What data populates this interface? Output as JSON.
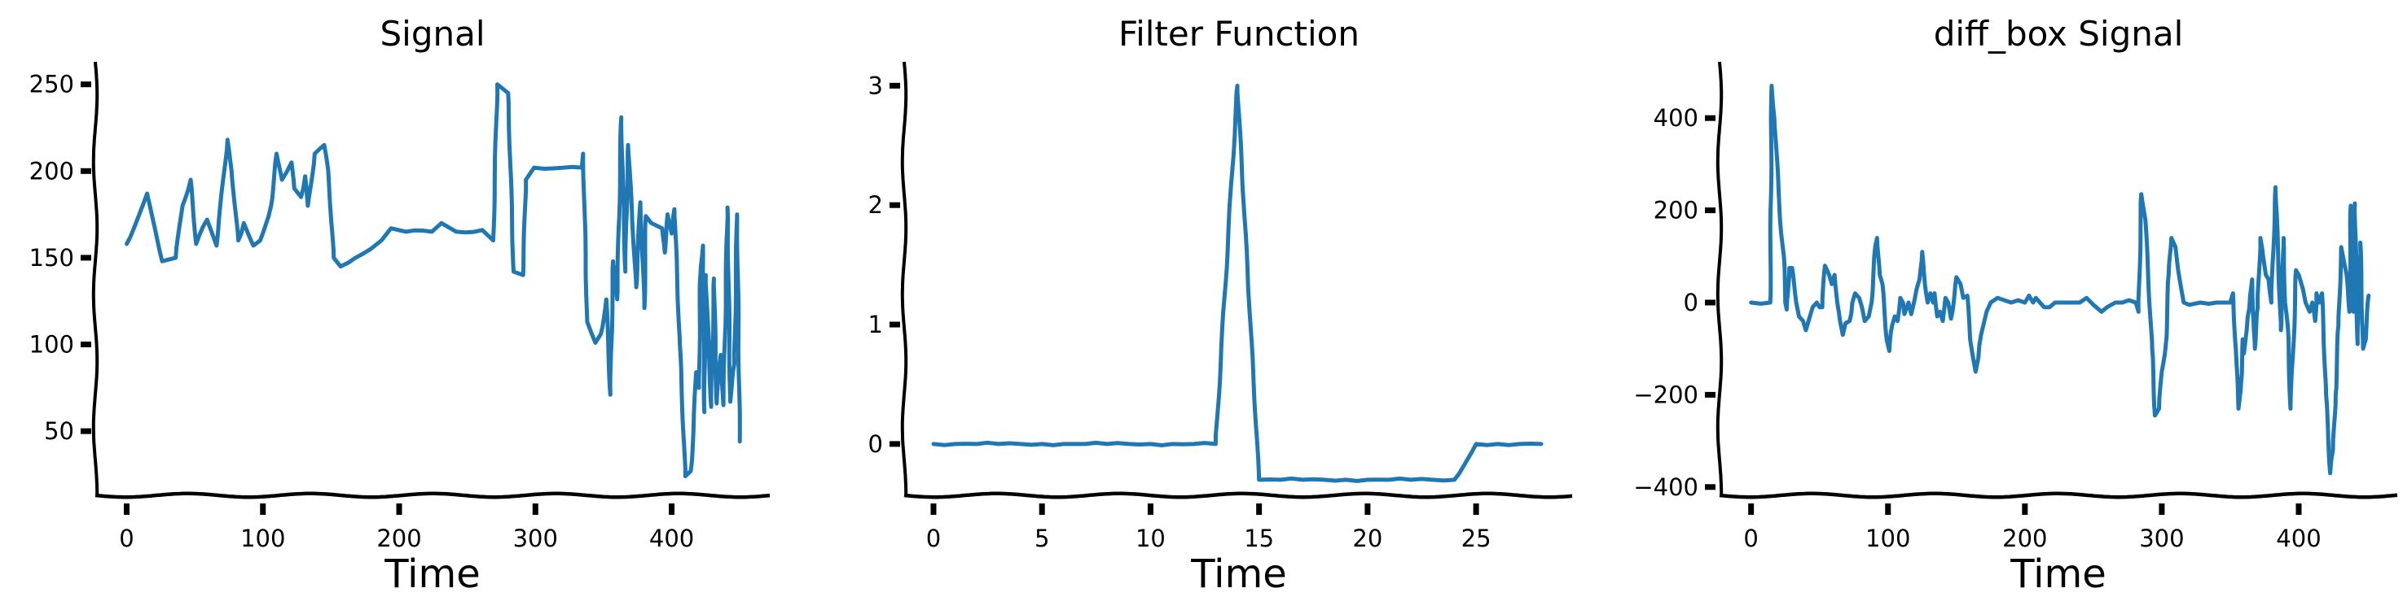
{
  "line_color": "#1f77b4",
  "chart_data": [
    {
      "type": "line",
      "title": "Signal",
      "xlabel": "Time",
      "ylabel": "",
      "xlim": [
        -23,
        472
      ],
      "ylim": [
        13,
        263
      ],
      "xticks": [
        0,
        100,
        200,
        300,
        400
      ],
      "xtick_labels": [
        "0",
        "100",
        "200",
        "300",
        "400"
      ],
      "yticks": [
        50,
        100,
        150,
        200,
        250
      ],
      "ytick_labels": [
        "50",
        "100",
        "150",
        "200",
        "250"
      ],
      "grid": false,
      "x": [
        0,
        15,
        26,
        36,
        41,
        47,
        51,
        59,
        66,
        74,
        77,
        82,
        86,
        93,
        98,
        106,
        110,
        114,
        121,
        123,
        128,
        131,
        133,
        138,
        142,
        145,
        148,
        152,
        157,
        168,
        179,
        187,
        194,
        205,
        224,
        231,
        242,
        261,
        269,
        272,
        280,
        284,
        291,
        293,
        299,
        334,
        335,
        338,
        344,
        348,
        352,
        355,
        357,
        360,
        363,
        366,
        368,
        374,
        377,
        380,
        381,
        385,
        393,
        395,
        397,
        400,
        402,
        406,
        410,
        414,
        416,
        418,
        420,
        421,
        423,
        424,
        425,
        429,
        431,
        433,
        436,
        438,
        441,
        443,
        446,
        448,
        450
      ],
      "y": [
        158,
        187,
        148,
        150,
        180,
        195,
        158,
        172,
        157,
        218,
        200,
        160,
        170,
        157,
        160,
        180,
        210,
        195,
        205,
        190,
        185,
        197,
        180,
        210,
        213,
        215,
        200,
        150,
        145,
        150,
        155,
        160,
        167,
        165,
        165,
        170,
        165,
        166,
        160,
        250,
        245,
        142,
        140,
        195,
        202,
        202,
        210,
        113,
        101,
        106,
        126,
        71,
        148,
        126,
        231,
        142,
        215,
        133,
        182,
        121,
        174,
        170,
        167,
        153,
        175,
        164,
        178,
        100,
        24,
        27,
        50,
        84,
        75,
        139,
        157,
        61,
        140,
        64,
        138,
        66,
        94,
        65,
        179,
        67,
        89,
        175,
        44
      ]
    },
    {
      "type": "line",
      "title": "Filter Function",
      "xlabel": "Time",
      "ylabel": "",
      "xlim": [
        -1.35,
        29.5
      ],
      "ylim": [
        -0.43,
        3.2
      ],
      "xticks": [
        0,
        5,
        10,
        15,
        20,
        25
      ],
      "xtick_labels": [
        "0",
        "5",
        "10",
        "15",
        "20",
        "25"
      ],
      "yticks": [
        0,
        1,
        2,
        3
      ],
      "ytick_labels": [
        "0",
        "1",
        "2",
        "3"
      ],
      "grid": false,
      "x": [
        0,
        1,
        2,
        3,
        4,
        5,
        6,
        7,
        8,
        9,
        10,
        11,
        12,
        13,
        14,
        15,
        16,
        17,
        18,
        19,
        20,
        21,
        22,
        23,
        24,
        25,
        26,
        27,
        28
      ],
      "y": [
        0,
        0,
        0,
        0,
        0,
        0,
        0,
        0,
        0,
        0,
        0,
        0,
        0,
        0,
        3,
        -0.3,
        -0.3,
        -0.3,
        -0.3,
        -0.3,
        -0.3,
        -0.3,
        -0.3,
        -0.3,
        -0.3,
        0,
        0,
        0,
        0
      ]
    },
    {
      "type": "line",
      "title": "diff_box Signal",
      "xlabel": "Time",
      "ylabel": "",
      "xlim": [
        -23,
        472
      ],
      "ylim": [
        -418,
        522
      ],
      "xticks": [
        0,
        100,
        200,
        300,
        400
      ],
      "xtick_labels": [
        "0",
        "100",
        "200",
        "300",
        "400"
      ],
      "yticks": [
        -400,
        -200,
        0,
        200,
        400
      ],
      "ytick_labels": [
        "−400",
        "−200",
        "0",
        "200",
        "400"
      ],
      "grid": false,
      "x": [
        0,
        14,
        15,
        17,
        20,
        22,
        24,
        25,
        26,
        28,
        30,
        33,
        35,
        38,
        40,
        43,
        45,
        48,
        50,
        52,
        54,
        57,
        59,
        61,
        63,
        65,
        67,
        69,
        72,
        74,
        76,
        79,
        81,
        83,
        86,
        88,
        90,
        92,
        94,
        96,
        99,
        101,
        103,
        105,
        107,
        108,
        109,
        111,
        112,
        115,
        117,
        119,
        121,
        123,
        125,
        127,
        129,
        131,
        133,
        134,
        136,
        138,
        140,
        142,
        144,
        146,
        148,
        150,
        153,
        155,
        158,
        160,
        164,
        166,
        168,
        172,
        175,
        180,
        185,
        190,
        195,
        200,
        203,
        206,
        208,
        214,
        218,
        222,
        228,
        235,
        240,
        245,
        250,
        256,
        260,
        266,
        271,
        276,
        281,
        283,
        285,
        288,
        290,
        293,
        295,
        298,
        300,
        303,
        305,
        307,
        310,
        313,
        316,
        320,
        328,
        340,
        350,
        352,
        354,
        356,
        358,
        359,
        360,
        362,
        364,
        366,
        367,
        368,
        370,
        372,
        374,
        376,
        378,
        380,
        383,
        385,
        387,
        389,
        390,
        392,
        394,
        396,
        398,
        400,
        403,
        405,
        408,
        410,
        412,
        413,
        415,
        417,
        418,
        420,
        423,
        425,
        427,
        429,
        431,
        433,
        435,
        437,
        438,
        440,
        441,
        443,
        445,
        447,
        449,
        451
      ],
      "y": [
        0,
        0,
        470,
        400,
        250,
        150,
        100,
        0,
        -15,
        75,
        75,
        0,
        -30,
        -40,
        -60,
        -30,
        -10,
        0,
        -10,
        -10,
        80,
        60,
        40,
        60,
        0,
        -40,
        -70,
        -45,
        -40,
        0,
        20,
        10,
        -10,
        -40,
        -30,
        0,
        100,
        140,
        60,
        40,
        -80,
        -105,
        -50,
        -30,
        -40,
        -20,
        10,
        0,
        -25,
        0,
        -25,
        0,
        30,
        50,
        110,
        40,
        0,
        20,
        0,
        20,
        -30,
        -20,
        -40,
        10,
        0,
        -35,
        0,
        55,
        40,
        10,
        15,
        -80,
        -150,
        -120,
        -70,
        -20,
        0,
        10,
        5,
        0,
        5,
        0,
        15,
        0,
        10,
        -10,
        -10,
        0,
        0,
        0,
        0,
        10,
        -5,
        -20,
        -10,
        0,
        0,
        5,
        0,
        -20,
        235,
        180,
        60,
        -100,
        -245,
        -230,
        -150,
        -90,
        60,
        140,
        120,
        50,
        0,
        -5,
        0,
        0,
        0,
        20,
        -100,
        -230,
        -170,
        -80,
        -110,
        -60,
        -10,
        50,
        -40,
        -100,
        -10,
        140,
        100,
        60,
        50,
        0,
        250,
        100,
        -60,
        140,
        0,
        -50,
        -230,
        -100,
        70,
        60,
        30,
        0,
        -20,
        0,
        -40,
        20,
        0,
        20,
        -50,
        -200,
        -370,
        -320,
        -200,
        -50,
        120,
        90,
        60,
        -20,
        210,
        -20,
        215,
        -90,
        130,
        -100,
        -80,
        15
      ]
    }
  ]
}
